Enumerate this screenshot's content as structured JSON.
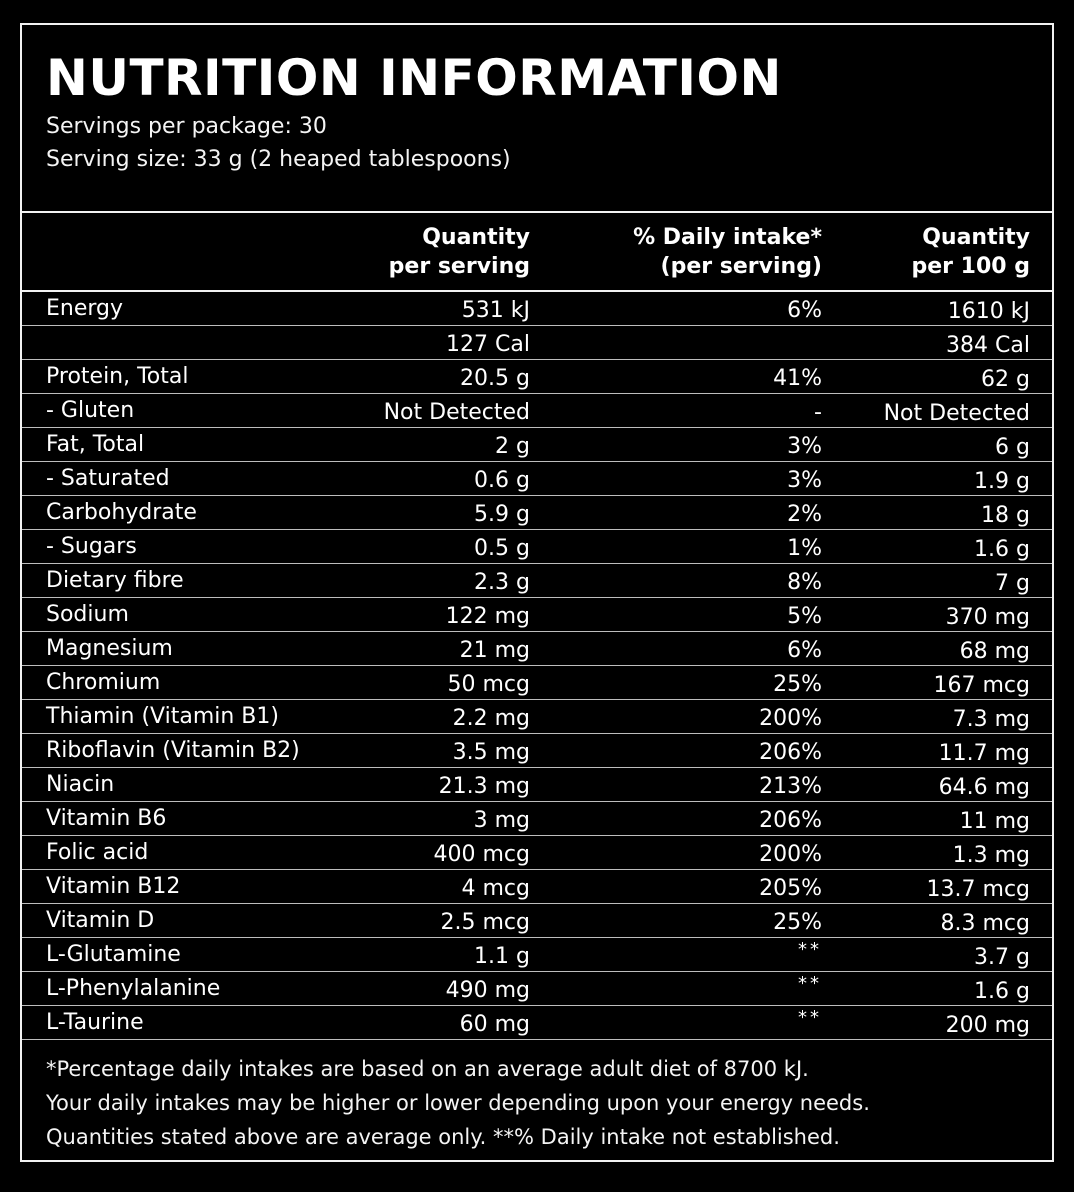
{
  "title": "NUTRITION INFORMATION",
  "servings_per_package": "Servings per package: 30",
  "serving_size": "Serving size: 33 g (2 heaped tablespoons)",
  "columns": [
    {
      "line1": "Quantity",
      "line2": "per serving"
    },
    {
      "line1": "% Daily intake*",
      "line2": "(per serving)"
    },
    {
      "line1": "Quantity",
      "line2": "per 100 g"
    }
  ],
  "rows": [
    {
      "name": "Energy",
      "per_serving": "531 kJ",
      "daily_intake": "6%",
      "per_100g": "1610 kJ"
    },
    {
      "name": "",
      "per_serving": "127 Cal",
      "daily_intake": "",
      "per_100g": "384 Cal"
    },
    {
      "name": "Protein, Total",
      "per_serving": "20.5 g",
      "daily_intake": "41%",
      "per_100g": "62 g"
    },
    {
      "name": "-  Gluten",
      "per_serving": "Not Detected",
      "daily_intake": "-",
      "per_100g": "Not Detected"
    },
    {
      "name": "Fat, Total",
      "per_serving": "2 g",
      "daily_intake": "3%",
      "per_100g": "6 g"
    },
    {
      "name": "-  Saturated",
      "per_serving": "0.6 g",
      "daily_intake": "3%",
      "per_100g": "1.9 g"
    },
    {
      "name": "Carbohydrate",
      "per_serving": "5.9 g",
      "daily_intake": "2%",
      "per_100g": "18 g"
    },
    {
      "name": "-  Sugars",
      "per_serving": "0.5 g",
      "daily_intake": "1%",
      "per_100g": "1.6 g"
    },
    {
      "name": "Dietary fibre",
      "per_serving": "2.3 g",
      "daily_intake": "8%",
      "per_100g": "7 g"
    },
    {
      "name": "Sodium",
      "per_serving": "122 mg",
      "daily_intake": "5%",
      "per_100g": "370 mg"
    },
    {
      "name": "Magnesium",
      "per_serving": "21 mg",
      "daily_intake": "6%",
      "per_100g": "68 mg"
    },
    {
      "name": "Chromium",
      "per_serving": "50 mcg",
      "daily_intake": "25%",
      "per_100g": "167 mcg"
    },
    {
      "name": "Thiamin (Vitamin B1)",
      "per_serving": "2.2 mg",
      "daily_intake": "200%",
      "per_100g": "7.3 mg"
    },
    {
      "name": "Riboflavin (Vitamin B2)",
      "per_serving": "3.5 mg",
      "daily_intake": "206%",
      "per_100g": "11.7 mg"
    },
    {
      "name": "Niacin",
      "per_serving": "21.3 mg",
      "daily_intake": "213%",
      "per_100g": "64.6 mg"
    },
    {
      "name": "Vitamin B6",
      "per_serving": "3 mg",
      "daily_intake": "206%",
      "per_100g": "11 mg"
    },
    {
      "name": "Folic acid",
      "per_serving": "400 mcg",
      "daily_intake": "200%",
      "per_100g": "1.3 mg"
    },
    {
      "name": "Vitamin B12",
      "per_serving": "4 mcg",
      "daily_intake": "205%",
      "per_100g": "13.7 mcg"
    },
    {
      "name": "Vitamin D",
      "per_serving": "2.5 mcg",
      "daily_intake": "25%",
      "per_100g": "8.3 mcg"
    },
    {
      "name": "L-Glutamine",
      "per_serving": "1.1 g",
      "daily_intake": "**",
      "per_100g": "3.7 g"
    },
    {
      "name": "L-Phenylalanine",
      "per_serving": "490 mg",
      "daily_intake": "**",
      "per_100g": "1.6 g"
    },
    {
      "name": "L-Taurine",
      "per_serving": "60 mg",
      "daily_intake": "**",
      "per_100g": "200 mg"
    }
  ],
  "footer": [
    "*Percentage daily intakes are based on an average adult diet of 8700 kJ.",
    "Your daily intakes may be higher or lower depending upon your energy needs.",
    "Quantities stated above are average only. **% Daily intake not established."
  ],
  "colors": {
    "background": "#000000",
    "text": "#ffffff",
    "border": "#f2f2f2",
    "row_divider": "#bdbdbd"
  }
}
